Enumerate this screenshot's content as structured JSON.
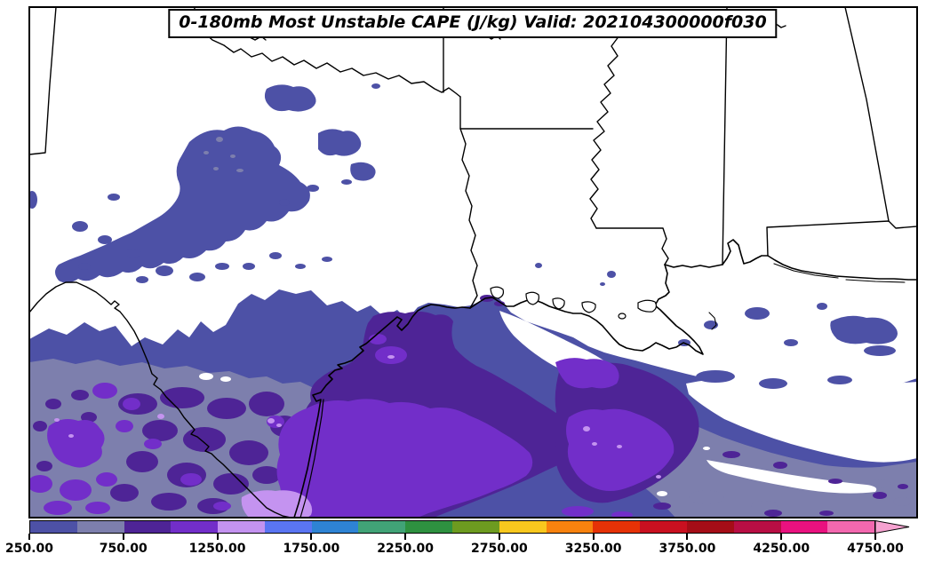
{
  "figure": {
    "title": "0-180mb Most Unstable CAPE (J/kg) Valid: 202104300000f030"
  },
  "colorbar": {
    "units": "J/kg",
    "min": 250,
    "max": 4750,
    "tick_labels": [
      "250.00",
      "750.00",
      "1250.00",
      "1750.00",
      "2250.00",
      "2750.00",
      "3250.00",
      "3750.00",
      "4250.00",
      "4750.00"
    ],
    "segments": [
      {
        "from": 250,
        "to": 500,
        "color": "#4d51a6"
      },
      {
        "from": 500,
        "to": 750,
        "color": "#7d7fad"
      },
      {
        "from": 750,
        "to": 1000,
        "color": "#4e2496"
      },
      {
        "from": 1000,
        "to": 1250,
        "color": "#722ec9"
      },
      {
        "from": 1250,
        "to": 1500,
        "color": "#c493f0"
      },
      {
        "from": 1500,
        "to": 1750,
        "color": "#5a75f2"
      },
      {
        "from": 1750,
        "to": 2000,
        "color": "#2e83d4"
      },
      {
        "from": 2000,
        "to": 2250,
        "color": "#41a377"
      },
      {
        "from": 2250,
        "to": 2500,
        "color": "#2e9140"
      },
      {
        "from": 2500,
        "to": 2750,
        "color": "#6d9b20"
      },
      {
        "from": 2750,
        "to": 3000,
        "color": "#f8c81e"
      },
      {
        "from": 3000,
        "to": 3250,
        "color": "#f8820e"
      },
      {
        "from": 3250,
        "to": 3500,
        "color": "#e63206"
      },
      {
        "from": 3500,
        "to": 3750,
        "color": "#c91020"
      },
      {
        "from": 3750,
        "to": 4000,
        "color": "#a50d17"
      },
      {
        "from": 4000,
        "to": 4250,
        "color": "#b80e44"
      },
      {
        "from": 4250,
        "to": 4500,
        "color": "#e9117f"
      },
      {
        "from": 4500,
        "to": 4750,
        "color": "#f368af"
      }
    ],
    "overflow_arrow_color": "#f6a2d0"
  },
  "map": {
    "background_color": "#ffffff",
    "border_color": "#000000",
    "fill_levels": {
      "250-500": "#4d51a6",
      "500-750": "#7d7fad",
      "750-1000": "#4e2496",
      "1000-1250": "#722ec9",
      "1250-1500": "#c493f0",
      "below-250": "#ffffff"
    }
  },
  "chart_data": {
    "type": "heatmap",
    "title": "0-180mb Most Unstable CAPE (J/kg) Valid: 202104300000f030",
    "variable": "Most Unstable CAPE",
    "layer": "0-180mb",
    "units": "J/kg",
    "valid_time": "202104300000f030",
    "contour_interval": 250,
    "colorbar_levels": [
      250,
      500,
      750,
      1000,
      1250,
      1500,
      1750,
      2000,
      2250,
      2500,
      2750,
      3000,
      3250,
      3500,
      3750,
      4000,
      4250,
      4500,
      4750
    ],
    "colorbar_tick_values": [
      250,
      750,
      1250,
      1750,
      2250,
      2750,
      3250,
      3750,
      4250,
      4750
    ],
    "values_shown_on_map_range": [
      250,
      1500
    ],
    "legend_position": "bottom"
  }
}
